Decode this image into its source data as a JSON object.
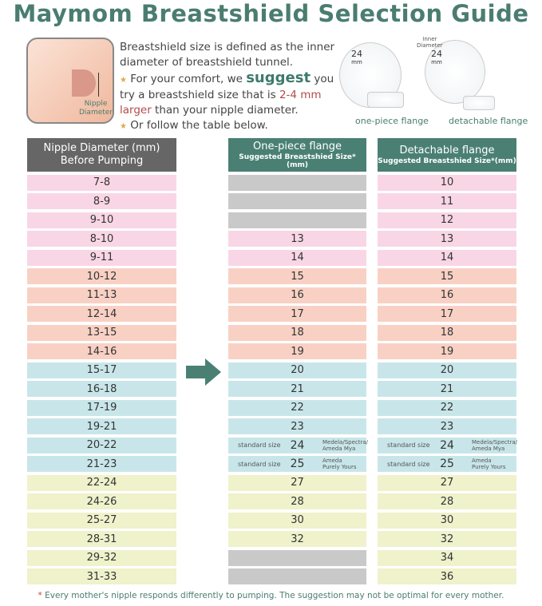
{
  "title": "Maymom Breastshield Selection Guide",
  "illustration": {
    "nipple_label_1": "Nipple",
    "nipple_label_2": "Diameter",
    "inner_1": "Inner",
    "inner_2": "Diameter",
    "size_value": "24",
    "size_unit": "mm",
    "caption_one_piece": "one-piece flange",
    "caption_detachable": "detachable flange"
  },
  "intro": {
    "line1": "Breastshield size is defined as the inner diameter of breastshield tunnel.",
    "line2_a": "For your comfort, we ",
    "line2_b": "suggest",
    "line2_c": " you try a breastshield size that is ",
    "line2_d": "2-4 mm larger",
    "line2_e": " than your nipple diameter.",
    "line3": "Or follow the table below."
  },
  "colors": {
    "title": "#4a7d70",
    "header_gray": "#666666",
    "header_green": "#4a8073",
    "pink": "#f9d6e5",
    "salmon": "#f8d1c4",
    "cyan": "#c8e6e9",
    "yellow": "#eff2cb",
    "na": "#c9c9c9"
  },
  "headers": {
    "nipple_1": "Nipple Diameter (mm)",
    "nipple_2": "Before Pumping",
    "one_piece": "One-piece flange",
    "detachable": "Detachable flange",
    "sub": "Suggested Breastshied Size*(mm)"
  },
  "rows": [
    {
      "nipple": "7-8",
      "one": "",
      "det": "10",
      "c": "pink"
    },
    {
      "nipple": "8-9",
      "one": "",
      "det": "11",
      "c": "pink"
    },
    {
      "nipple": "9-10",
      "one": "",
      "det": "12",
      "c": "pink"
    },
    {
      "nipple": "8-10",
      "one": "13",
      "det": "13",
      "c": "pink"
    },
    {
      "nipple": "9-11",
      "one": "14",
      "det": "14",
      "c": "pink"
    },
    {
      "nipple": "10-12",
      "one": "15",
      "det": "15",
      "c": "salmon"
    },
    {
      "nipple": "11-13",
      "one": "16",
      "det": "16",
      "c": "salmon"
    },
    {
      "nipple": "12-14",
      "one": "17",
      "det": "17",
      "c": "salmon"
    },
    {
      "nipple": "13-15",
      "one": "18",
      "det": "18",
      "c": "salmon"
    },
    {
      "nipple": "14-16",
      "one": "19",
      "det": "19",
      "c": "salmon"
    },
    {
      "nipple": "15-17",
      "one": "20",
      "det": "20",
      "c": "cyan"
    },
    {
      "nipple": "16-18",
      "one": "21",
      "det": "21",
      "c": "cyan"
    },
    {
      "nipple": "17-19",
      "one": "22",
      "det": "22",
      "c": "cyan"
    },
    {
      "nipple": "19-21",
      "one": "23",
      "det": "23",
      "c": "cyan"
    },
    {
      "nipple": "20-22",
      "one": "24",
      "det": "24",
      "c": "cyan",
      "std": "standard size",
      "brand1": "Medela/Spectra/",
      "brand2": "Ameda Mya"
    },
    {
      "nipple": "21-23",
      "one": "25",
      "det": "25",
      "c": "cyan",
      "std": "standard size",
      "brand1": "Ameda",
      "brand2": "Purely Yours"
    },
    {
      "nipple": "22-24",
      "one": "27",
      "det": "27",
      "c": "yellow"
    },
    {
      "nipple": "24-26",
      "one": "28",
      "det": "28",
      "c": "yellow"
    },
    {
      "nipple": "25-27",
      "one": "30",
      "det": "30",
      "c": "yellow"
    },
    {
      "nipple": "28-31",
      "one": "32",
      "det": "32",
      "c": "yellow"
    },
    {
      "nipple": "29-32",
      "one": "",
      "det": "34",
      "c": "yellow"
    },
    {
      "nipple": "31-33",
      "one": "",
      "det": "36",
      "c": "yellow"
    }
  ],
  "footnote": {
    "ast": "*",
    "text": " Every mother's nipple responds differently to pumping. The suggestion may not be optimal for every mother."
  }
}
